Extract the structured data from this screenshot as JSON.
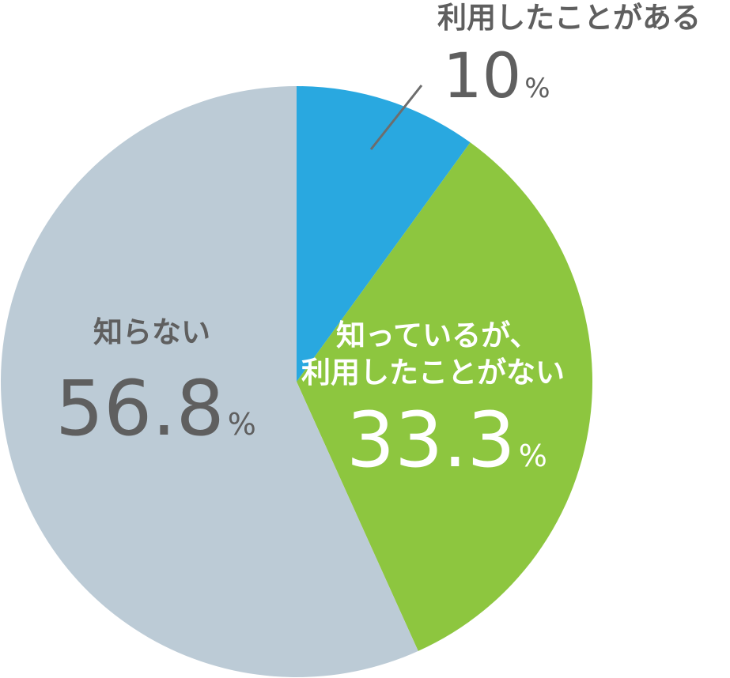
{
  "chart_data": {
    "type": "pie",
    "categories": [
      "利用したことがある",
      "知っているが、利用したことがない",
      "知らない"
    ],
    "values": [
      10,
      33.3,
      56.8
    ],
    "unit": "%",
    "colors": [
      "#29A8E0",
      "#8DC63F",
      "#BCCBD6"
    ]
  },
  "labels": {
    "used": {
      "text": "利用したことがある",
      "value": "10",
      "unit": "%"
    },
    "known": {
      "line1": "知っているが、",
      "line2": "利用したことがない",
      "value": "33.3",
      "unit": "%"
    },
    "unknown": {
      "text": "知らない",
      "value": "56.8",
      "unit": "%"
    }
  },
  "theme": {
    "dark_text": "#5f5f5f",
    "light_text": "#ffffff",
    "leader_line": "#6d6d6d"
  }
}
